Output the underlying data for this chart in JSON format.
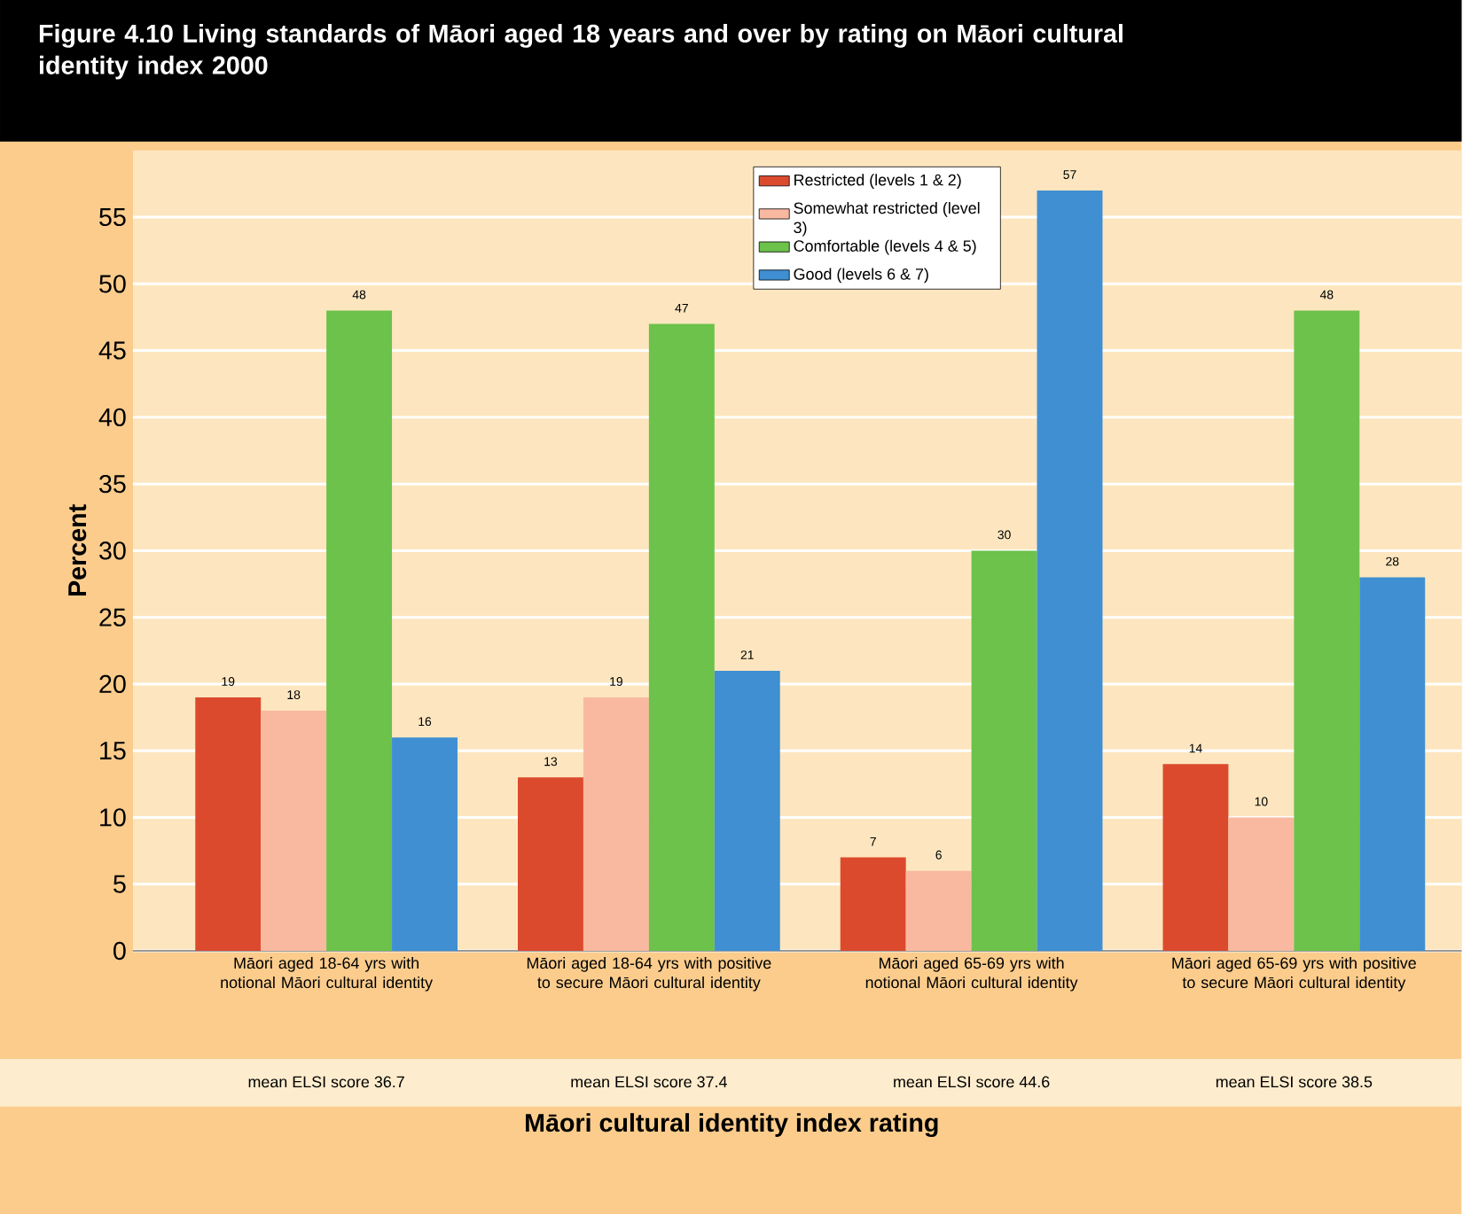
{
  "chart_data": {
    "type": "bar",
    "title": "Figure 4.10  Living standards of Māori aged 18 years and over by rating on Māori cultural identity index 2000",
    "xlabel": "Māori cultural identity index rating",
    "ylabel": "Percent",
    "categories": [
      "Māori aged 18-64 yrs with notional Māori cultural identity",
      "Māori aged 18-64 yrs with positive to secure Māori cultural identity",
      "Māori aged 65-69 yrs with notional Māori cultural identity",
      "Māori aged 65-69 yrs with positive to secure Māori cultural identity"
    ],
    "series": [
      {
        "name": "Restricted (levels 1 & 2)",
        "color": "#dc4a2e",
        "values": [
          19,
          13,
          7,
          14
        ]
      },
      {
        "name": "Somewhat restricted (level 3)",
        "color": "#f8b9a0",
        "values": [
          18,
          19,
          6,
          10
        ]
      },
      {
        "name": "Comfortable (levels 4 & 5)",
        "color": "#6cc24a",
        "values": [
          48,
          47,
          30,
          48
        ]
      },
      {
        "name": "Good (levels 6 & 7)",
        "color": "#3f8fd2",
        "values": [
          16,
          21,
          57,
          28
        ]
      }
    ],
    "annotations": [
      "mean ELSI score 36.7",
      "mean ELSI score 37.4",
      "mean ELSI score 44.6",
      "mean ELSI score 38.5"
    ],
    "ylim": [
      0,
      60
    ],
    "yticks": [
      0,
      5,
      10,
      15,
      20,
      25,
      30,
      35,
      40,
      45,
      50,
      55
    ],
    "grid": "y",
    "legend": "top",
    "data_labels": true
  }
}
